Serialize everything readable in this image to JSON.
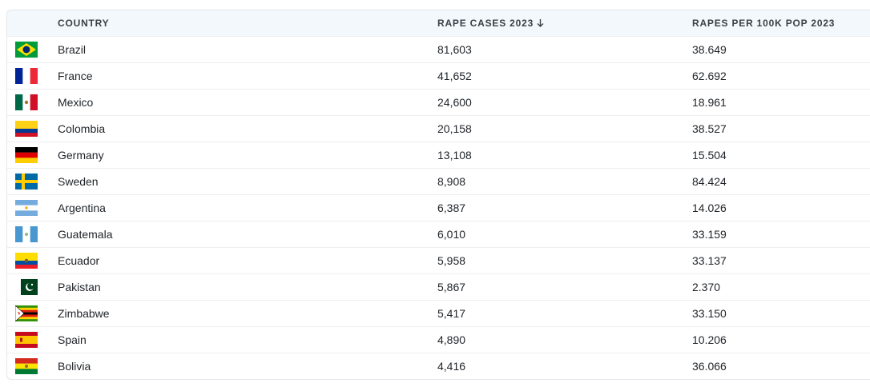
{
  "table": {
    "columns": [
      "COUNTRY",
      "RAPE CASES 2023",
      "RAPES PER 100K POP 2023"
    ],
    "rows": [
      [
        "Brazil",
        "81,603",
        "38.649"
      ],
      [
        "France",
        "41,652",
        "62.692"
      ],
      [
        "Mexico",
        "24,600",
        "18.961"
      ],
      [
        "Colombia",
        "20,158",
        "38.527"
      ],
      [
        "Germany",
        "13,108",
        "15.504"
      ],
      [
        "Sweden",
        "8,908",
        "84.424"
      ],
      [
        "Argentina",
        "6,387",
        "14.026"
      ],
      [
        "Guatemala",
        "6,010",
        "33.159"
      ],
      [
        "Ecuador",
        "5,958",
        "33.137"
      ],
      [
        "Pakistan",
        "5,867",
        "2.370"
      ],
      [
        "Zimbabwe",
        "5,417",
        "33.150"
      ],
      [
        "Spain",
        "4,890",
        "10.206"
      ],
      [
        "Bolivia",
        "4,416",
        "36.066"
      ]
    ]
  }
}
